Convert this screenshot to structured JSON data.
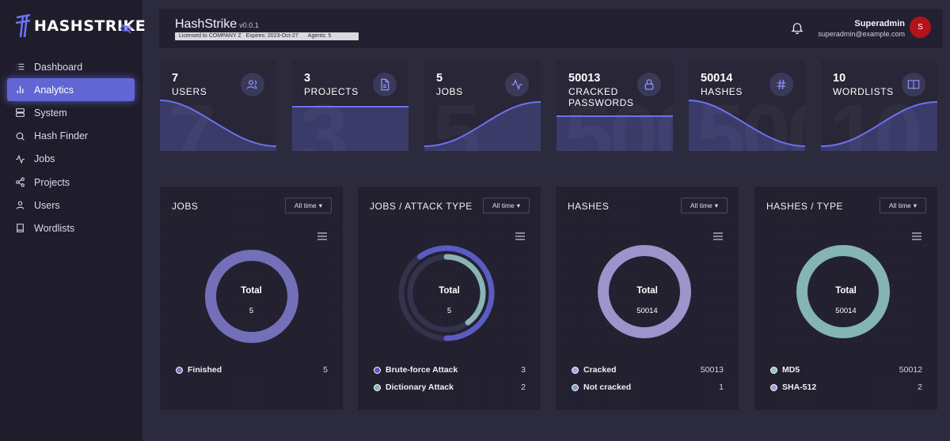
{
  "brand": {
    "logo_text": "HASHSTRIKE"
  },
  "sidebar": {
    "items": [
      {
        "label": "Dashboard",
        "icon": "list-icon",
        "active": false
      },
      {
        "label": "Analytics",
        "icon": "bar-chart-icon",
        "active": true
      },
      {
        "label": "System",
        "icon": "server-icon",
        "active": false
      },
      {
        "label": "Hash Finder",
        "icon": "search-icon",
        "active": false
      },
      {
        "label": "Jobs",
        "icon": "activity-icon",
        "active": false
      },
      {
        "label": "Projects",
        "icon": "share-icon",
        "active": false
      },
      {
        "label": "Users",
        "icon": "user-icon",
        "active": false
      },
      {
        "label": "Wordlists",
        "icon": "book-icon",
        "active": false
      }
    ]
  },
  "header": {
    "title": "HashStrike",
    "version": "v0.0.1",
    "license": "Licensed to COMPANY Z",
    "expires": "Expires: 2023-Oct-27",
    "agents": "Agents: 5",
    "user_name": "Superadmin",
    "user_email": "superadmin@example.com",
    "avatar_initial": "S"
  },
  "stats": [
    {
      "value": "7",
      "label": "USERS",
      "icon": "users-icon"
    },
    {
      "value": "3",
      "label": "PROJECTS",
      "icon": "file-icon"
    },
    {
      "value": "5",
      "label": "JOBS",
      "icon": "activity-icon"
    },
    {
      "value": "50013",
      "label": "CRACKED PASSWORDS",
      "icon": "lock-icon"
    },
    {
      "value": "50014",
      "label": "HASHES",
      "icon": "hash-icon"
    },
    {
      "value": "10",
      "label": "WORDLISTS",
      "icon": "book-icon"
    }
  ],
  "charts_common": {
    "time_filter": "All time",
    "total_label": "Total"
  },
  "chart_data": [
    {
      "type": "pie",
      "title": "JOBS",
      "total": "5",
      "series": [
        {
          "name": "Finished",
          "value": 5,
          "color": "#7c78c8"
        }
      ]
    },
    {
      "type": "pie",
      "title": "JOBS / ATTACK TYPE",
      "total": "5",
      "series": [
        {
          "name": "Brute-force Attack",
          "value": 3,
          "color": "#5b5cc2"
        },
        {
          "name": "Dictionary Attack",
          "value": 2,
          "color": "#8ab3b8"
        }
      ]
    },
    {
      "type": "pie",
      "title": "HASHES",
      "total": "50014",
      "series": [
        {
          "name": "Cracked",
          "value": 50013,
          "color": "#a9a2de"
        },
        {
          "name": "Not cracked",
          "value": 1,
          "color": "#7f9ccf"
        }
      ]
    },
    {
      "type": "pie",
      "title": "HASHES / TYPE",
      "total": "50014",
      "series": [
        {
          "name": "MD5",
          "value": 50012,
          "color": "#8fc4c4"
        },
        {
          "name": "SHA-512",
          "value": 2,
          "color": "#a49ae0"
        }
      ]
    }
  ]
}
